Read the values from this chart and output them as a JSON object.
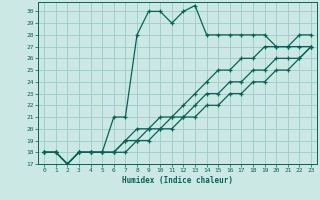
{
  "xlabel": "Humidex (Indice chaleur)",
  "xlim": [
    -0.5,
    23.5
  ],
  "ylim": [
    17,
    30.8
  ],
  "yticks": [
    17,
    18,
    19,
    20,
    21,
    22,
    23,
    24,
    25,
    26,
    27,
    28,
    29,
    30
  ],
  "xticks": [
    0,
    1,
    2,
    3,
    4,
    5,
    6,
    7,
    8,
    9,
    10,
    11,
    12,
    13,
    14,
    15,
    16,
    17,
    18,
    19,
    20,
    21,
    22,
    23
  ],
  "bg_color": "#cce8e4",
  "grid_color": "#99cccc",
  "line_color": "#006655",
  "lines": [
    [
      18,
      18,
      17,
      18,
      18,
      18,
      21,
      21,
      28,
      30,
      30,
      29,
      30,
      30.5,
      28,
      28,
      28,
      28,
      28,
      28,
      27,
      27,
      28,
      28
    ],
    [
      18,
      18,
      17,
      18,
      18,
      18,
      18,
      19,
      20,
      20,
      21,
      21,
      22,
      23,
      24,
      25,
      25,
      26,
      26,
      27,
      27,
      27,
      27,
      27
    ],
    [
      18,
      18,
      17,
      18,
      18,
      18,
      18,
      19,
      19,
      20,
      20,
      21,
      21,
      22,
      23,
      23,
      24,
      24,
      25,
      25,
      26,
      26,
      26,
      27
    ],
    [
      18,
      18,
      17,
      18,
      18,
      18,
      18,
      18,
      19,
      19,
      20,
      20,
      21,
      21,
      22,
      22,
      23,
      23,
      24,
      24,
      25,
      25,
      26,
      27
    ]
  ]
}
